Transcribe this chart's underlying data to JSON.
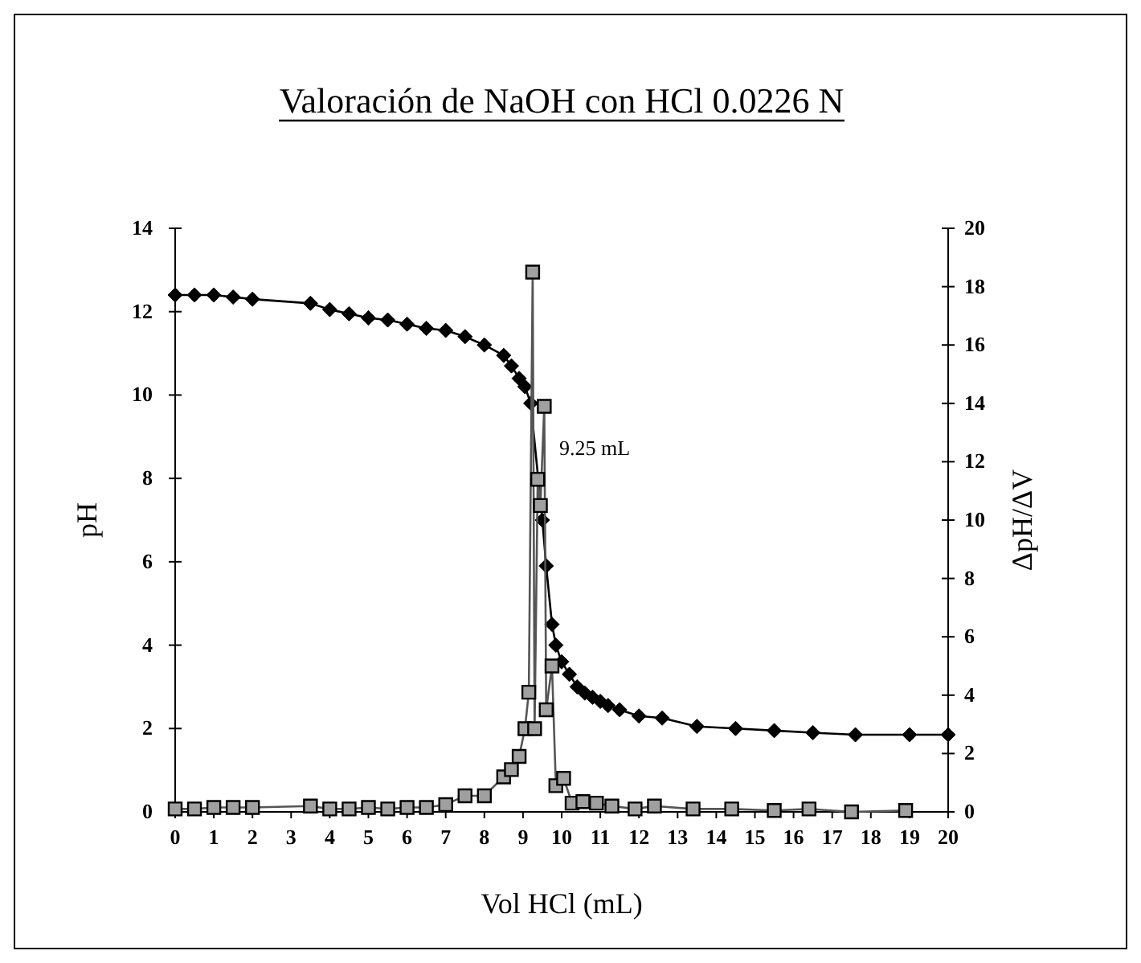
{
  "chart_data": {
    "type": "line",
    "title": "Valoración de NaOH con HCl 0.0226 N",
    "xlabel": "Vol HCl (mL)",
    "ylabel": "pH",
    "y2label": "ΔpH/ΔV",
    "annotations": [
      "9.25 mL"
    ],
    "xlim": [
      0,
      20
    ],
    "xticks": [
      0,
      1,
      2,
      3,
      4,
      5,
      6,
      7,
      8,
      9,
      10,
      11,
      12,
      13,
      14,
      15,
      16,
      17,
      18,
      19,
      20
    ],
    "ylim": [
      0,
      14
    ],
    "yticks": [
      0,
      2,
      4,
      6,
      8,
      10,
      12,
      14
    ],
    "y2lim": [
      0,
      20
    ],
    "y2ticks": [
      0,
      2,
      4,
      6,
      8,
      10,
      12,
      14,
      16,
      18,
      20
    ],
    "grid": false,
    "line_style": "solid",
    "series": [
      {
        "color": "#000000",
        "marker": "diamond",
        "axis": "y",
        "x": [
          0,
          0.5,
          1,
          1.5,
          2,
          3.5,
          4,
          4.5,
          5,
          5.5,
          6,
          6.5,
          7,
          7.5,
          8,
          8.5,
          8.7,
          8.9,
          9.05,
          9.2,
          9.25,
          9.4,
          9.5,
          9.6,
          9.75,
          9.85,
          10,
          10.2,
          10.4,
          10.6,
          10.8,
          11,
          11.2,
          11.5,
          12,
          12.6,
          13.5,
          14.5,
          15.5,
          16.5,
          17.6,
          19,
          20
        ],
        "values": [
          12.4,
          12.4,
          12.4,
          12.35,
          12.3,
          12.2,
          12.05,
          11.95,
          11.85,
          11.8,
          11.7,
          11.6,
          11.55,
          11.4,
          11.2,
          10.95,
          10.7,
          10.4,
          10.2,
          9.8,
          null,
          null,
          7,
          5.9,
          4.5,
          4,
          3.6,
          3.3,
          3,
          2.85,
          2.75,
          2.65,
          2.55,
          2.45,
          2.3,
          2.25,
          2.05,
          2,
          1.95,
          1.9,
          1.85,
          1.85,
          1.85
        ]
      },
      {
        "color": "#555555",
        "marker": "square",
        "axis": "y2",
        "x": [
          0,
          0.5,
          1,
          1.5,
          2,
          3.5,
          4,
          4.5,
          5,
          5.5,
          6,
          6.5,
          7,
          7.5,
          8,
          8.5,
          8.7,
          8.9,
          9.05,
          9.15,
          9.25,
          9.3,
          9.38,
          9.45,
          9.55,
          9.6,
          9.75,
          9.85,
          10.05,
          10.27,
          10.55,
          10.9,
          11.3,
          11.9,
          12.4,
          13.4,
          14.4,
          15.5,
          16.4,
          17.5,
          18.9
        ],
        "values": [
          0.1,
          0.1,
          0.15,
          0.15,
          0.15,
          0.2,
          0.1,
          0.1,
          0.15,
          0.1,
          0.15,
          0.15,
          0.25,
          0.55,
          0.55,
          1.2,
          1.45,
          1.9,
          2.85,
          4.1,
          18.5,
          2.85,
          11.4,
          10.5,
          13.9,
          3.5,
          5,
          0.9,
          1.15,
          0.3,
          0.35,
          0.3,
          0.2,
          0.1,
          0.2,
          0.1,
          0.1,
          0.05,
          0.1,
          0,
          0.05
        ]
      }
    ]
  }
}
